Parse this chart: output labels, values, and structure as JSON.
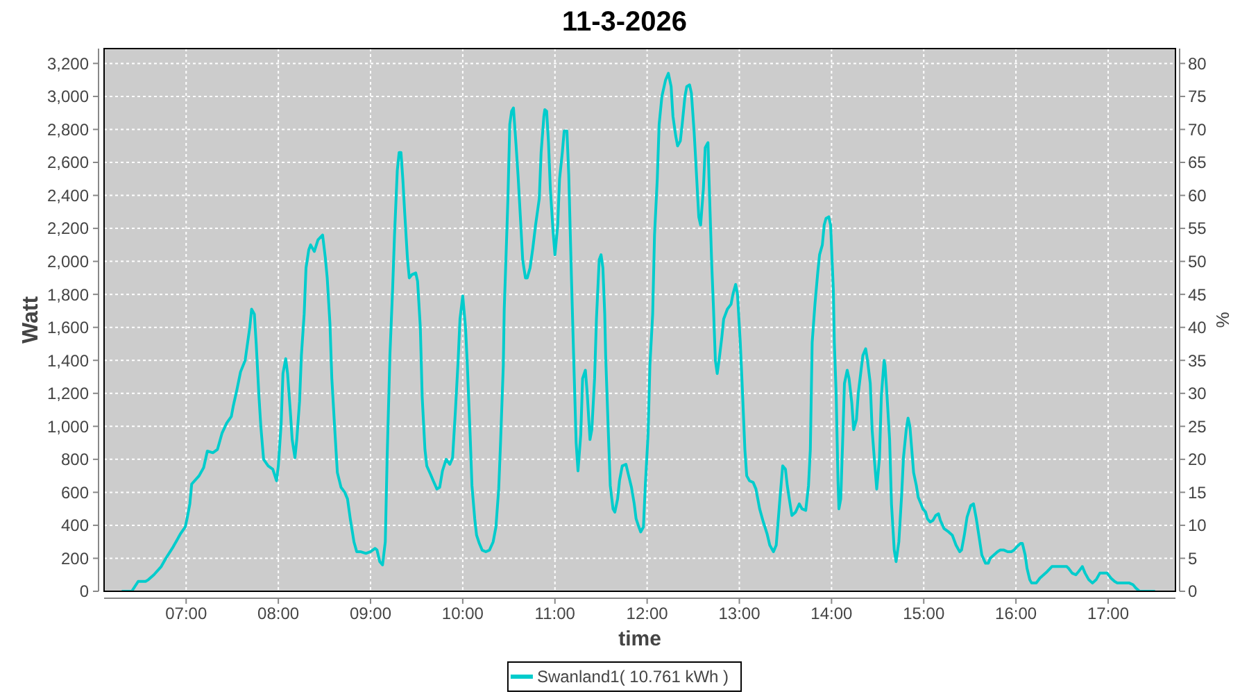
{
  "chart_data": {
    "type": "line",
    "title": "11-3-2026",
    "xlabel": "time",
    "ylabel": "Watt",
    "y2label": "%",
    "x": [
      6.31,
      6.41,
      6.48,
      6.56,
      6.59,
      6.65,
      6.73,
      6.78,
      6.86,
      6.94,
      6.99,
      7.01,
      7.04,
      7.06,
      7.14,
      7.19,
      7.23,
      7.29,
      7.34,
      7.39,
      7.44,
      7.49,
      7.51,
      7.55,
      7.59,
      7.64,
      7.66,
      7.69,
      7.71,
      7.74,
      7.76,
      7.79,
      7.81,
      7.84,
      7.89,
      7.94,
      7.98,
      8.0,
      8.03,
      8.05,
      8.08,
      8.1,
      8.13,
      8.15,
      8.18,
      8.2,
      8.23,
      8.25,
      8.28,
      8.3,
      8.33,
      8.35,
      8.39,
      8.43,
      8.48,
      8.51,
      8.53,
      8.56,
      8.58,
      8.61,
      8.64,
      8.68,
      8.72,
      8.75,
      8.78,
      8.82,
      8.85,
      8.89,
      8.95,
      9.0,
      9.05,
      9.07,
      9.1,
      9.13,
      9.16,
      9.18,
      9.21,
      9.24,
      9.26,
      9.29,
      9.31,
      9.33,
      9.35,
      9.37,
      9.4,
      9.42,
      9.45,
      9.49,
      9.51,
      9.54,
      9.56,
      9.59,
      9.61,
      9.65,
      9.68,
      9.72,
      9.75,
      9.78,
      9.82,
      9.86,
      9.89,
      9.92,
      9.95,
      9.97,
      10.0,
      10.03,
      10.05,
      10.08,
      10.1,
      10.13,
      10.15,
      10.18,
      10.21,
      10.25,
      10.29,
      10.33,
      10.36,
      10.39,
      10.41,
      10.44,
      10.45,
      10.47,
      10.49,
      10.51,
      10.53,
      10.55,
      10.58,
      10.6,
      10.63,
      10.65,
      10.68,
      10.7,
      10.73,
      10.76,
      10.79,
      10.83,
      10.85,
      10.88,
      10.89,
      10.91,
      10.93,
      10.95,
      10.98,
      11.0,
      11.03,
      11.05,
      11.08,
      11.1,
      11.13,
      11.15,
      11.18,
      11.2,
      11.23,
      11.25,
      11.28,
      11.3,
      11.33,
      11.35,
      11.38,
      11.4,
      11.43,
      11.45,
      11.48,
      11.5,
      11.52,
      11.54,
      11.55,
      11.58,
      11.6,
      11.63,
      11.65,
      11.68,
      11.7,
      11.73,
      11.77,
      11.8,
      11.83,
      11.86,
      11.88,
      11.91,
      11.93,
      11.96,
      11.98,
      12.01,
      12.03,
      12.06,
      12.08,
      12.11,
      12.13,
      12.16,
      12.2,
      12.23,
      12.26,
      12.28,
      12.31,
      12.33,
      12.36,
      12.38,
      12.41,
      12.43,
      12.46,
      12.48,
      12.51,
      12.53,
      12.56,
      12.58,
      12.61,
      12.63,
      12.66,
      12.67,
      12.7,
      12.72,
      12.74,
      12.76,
      12.78,
      12.81,
      12.83,
      12.87,
      12.91,
      12.93,
      12.96,
      12.98,
      13.01,
      13.03,
      13.06,
      13.08,
      13.11,
      13.15,
      13.18,
      13.22,
      13.26,
      13.3,
      13.33,
      13.37,
      13.4,
      13.42,
      13.44,
      13.47,
      13.5,
      13.52,
      13.55,
      13.57,
      13.61,
      13.65,
      13.68,
      13.72,
      13.75,
      13.77,
      13.79,
      13.82,
      13.85,
      13.87,
      13.9,
      13.92,
      13.94,
      13.97,
      13.99,
      14.02,
      14.03,
      14.05,
      14.07,
      14.08,
      14.1,
      14.12,
      14.14,
      14.17,
      14.19,
      14.22,
      14.24,
      14.27,
      14.29,
      14.32,
      14.34,
      14.37,
      14.39,
      14.42,
      14.44,
      14.47,
      14.49,
      14.52,
      14.54,
      14.57,
      14.58,
      14.6,
      14.63,
      14.65,
      14.68,
      14.7,
      14.73,
      14.76,
      14.78,
      14.81,
      14.83,
      14.85,
      14.87,
      14.89,
      14.92,
      14.94,
      14.97,
      14.99,
      15.02,
      15.04,
      15.07,
      15.1,
      15.13,
      15.16,
      15.18,
      15.22,
      15.27,
      15.31,
      15.35,
      15.39,
      15.41,
      15.44,
      15.47,
      15.51,
      15.54,
      15.57,
      15.6,
      15.63,
      15.67,
      15.7,
      15.72,
      15.76,
      15.8,
      15.83,
      15.87,
      15.91,
      15.95,
      15.98,
      16.01,
      16.05,
      16.07,
      16.1,
      16.12,
      16.15,
      16.17,
      16.22,
      16.26,
      16.3,
      16.34,
      16.39,
      16.45,
      16.5,
      16.55,
      16.57,
      16.61,
      16.65,
      16.68,
      16.72,
      16.75,
      16.79,
      16.83,
      16.87,
      16.91,
      16.95,
      16.99,
      17.03,
      17.07,
      17.1,
      17.15,
      17.23,
      17.27,
      17.3,
      17.34,
      17.4,
      17.5
    ],
    "series": [
      {
        "name": "Swanland1( 10.761 kWh )",
        "color": "#00cccc",
        "values": [
          0,
          0,
          60,
          60,
          70,
          100,
          150,
          200,
          270,
          350,
          390,
          440,
          530,
          650,
          700,
          750,
          850,
          840,
          860,
          960,
          1020,
          1060,
          1120,
          1220,
          1330,
          1400,
          1480,
          1600,
          1710,
          1680,
          1500,
          1180,
          1000,
          800,
          760,
          740,
          670,
          760,
          1010,
          1320,
          1410,
          1320,
          1090,
          920,
          810,
          920,
          1150,
          1430,
          1680,
          1960,
          2070,
          2100,
          2060,
          2130,
          2160,
          2020,
          1900,
          1620,
          1290,
          1000,
          720,
          630,
          600,
          560,
          440,
          300,
          240,
          240,
          230,
          240,
          260,
          250,
          180,
          160,
          300,
          810,
          1430,
          1840,
          2160,
          2550,
          2660,
          2660,
          2500,
          2300,
          2020,
          1900,
          1920,
          1930,
          1880,
          1600,
          1180,
          860,
          760,
          710,
          670,
          620,
          630,
          730,
          800,
          770,
          810,
          1090,
          1400,
          1650,
          1790,
          1600,
          1370,
          950,
          640,
          440,
          340,
          290,
          250,
          240,
          250,
          300,
          390,
          620,
          900,
          1370,
          1710,
          2040,
          2380,
          2830,
          2910,
          2930,
          2690,
          2520,
          2220,
          2010,
          1900,
          1900,
          1960,
          2080,
          2220,
          2380,
          2660,
          2880,
          2920,
          2910,
          2720,
          2440,
          2180,
          2040,
          2220,
          2500,
          2660,
          2790,
          2790,
          2520,
          1880,
          1480,
          900,
          730,
          950,
          1290,
          1340,
          1200,
          920,
          980,
          1290,
          1650,
          2010,
          2040,
          1960,
          1680,
          1430,
          950,
          640,
          500,
          480,
          560,
          670,
          760,
          770,
          700,
          630,
          530,
          440,
          390,
          360,
          390,
          640,
          950,
          1370,
          1680,
          2160,
          2500,
          2830,
          3000,
          3100,
          3140,
          3060,
          2880,
          2760,
          2700,
          2730,
          2830,
          3000,
          3060,
          3070,
          3020,
          2780,
          2580,
          2270,
          2220,
          2440,
          2690,
          2720,
          2520,
          1990,
          1710,
          1400,
          1320,
          1400,
          1540,
          1650,
          1710,
          1740,
          1800,
          1860,
          1800,
          1510,
          1260,
          860,
          700,
          670,
          660,
          620,
          500,
          420,
          350,
          280,
          240,
          280,
          420,
          560,
          760,
          740,
          640,
          530,
          460,
          480,
          530,
          500,
          490,
          640,
          860,
          1510,
          1740,
          1930,
          2040,
          2100,
          2220,
          2260,
          2270,
          2220,
          1820,
          1510,
          1200,
          670,
          500,
          560,
          900,
          1260,
          1340,
          1290,
          1140,
          980,
          1040,
          1200,
          1340,
          1430,
          1470,
          1400,
          1260,
          980,
          760,
          620,
          810,
          1180,
          1400,
          1370,
          1200,
          920,
          530,
          250,
          180,
          300,
          580,
          810,
          980,
          1050,
          1000,
          860,
          720,
          640,
          570,
          530,
          500,
          480,
          440,
          420,
          430,
          460,
          470,
          430,
          380,
          360,
          340,
          280,
          240,
          250,
          340,
          450,
          520,
          530,
          440,
          330,
          220,
          170,
          170,
          200,
          220,
          240,
          250,
          250,
          240,
          240,
          250,
          270,
          290,
          290,
          220,
          140,
          70,
          50,
          50,
          80,
          100,
          120,
          150,
          150,
          150,
          150,
          140,
          110,
          100,
          120,
          150,
          110,
          70,
          50,
          70,
          110,
          110,
          110,
          80,
          60,
          50,
          50,
          50,
          40,
          20,
          0,
          0,
          0
        ]
      }
    ],
    "xlim": [
      6.11,
      17.73
    ],
    "xticks": [
      {
        "value": 7,
        "label": "07:00"
      },
      {
        "value": 8,
        "label": "08:00"
      },
      {
        "value": 9,
        "label": "09:00"
      },
      {
        "value": 10,
        "label": "10:00"
      },
      {
        "value": 11,
        "label": "11:00"
      },
      {
        "value": 12,
        "label": "12:00"
      },
      {
        "value": 13,
        "label": "13:00"
      },
      {
        "value": 14,
        "label": "14:00"
      },
      {
        "value": 15,
        "label": "15:00"
      },
      {
        "value": 16,
        "label": "16:00"
      },
      {
        "value": 17,
        "label": "17:00"
      }
    ],
    "ylim": [
      0,
      3290
    ],
    "yticks": [
      0,
      200,
      400,
      600,
      800,
      {
        "value": 1000,
        "label": "1,000"
      },
      {
        "value": 1200,
        "label": "1,200"
      },
      {
        "value": 1400,
        "label": "1,400"
      },
      {
        "value": 1600,
        "label": "1,600"
      },
      {
        "value": 1800,
        "label": "1,800"
      },
      {
        "value": 2000,
        "label": "2,000"
      },
      {
        "value": 2200,
        "label": "2,200"
      },
      {
        "value": 2400,
        "label": "2,400"
      },
      {
        "value": 2600,
        "label": "2,600"
      },
      {
        "value": 2800,
        "label": "2,800"
      },
      {
        "value": 3000,
        "label": "3,000"
      },
      {
        "value": 3200,
        "label": "3,200"
      }
    ],
    "y2lim": [
      0,
      82.25
    ],
    "y2ticks": [
      0,
      5,
      10,
      15,
      20,
      25,
      30,
      35,
      40,
      45,
      50,
      55,
      60,
      65,
      70,
      75,
      80
    ],
    "grid": true,
    "legend": "bottom",
    "line_style": "solid"
  }
}
